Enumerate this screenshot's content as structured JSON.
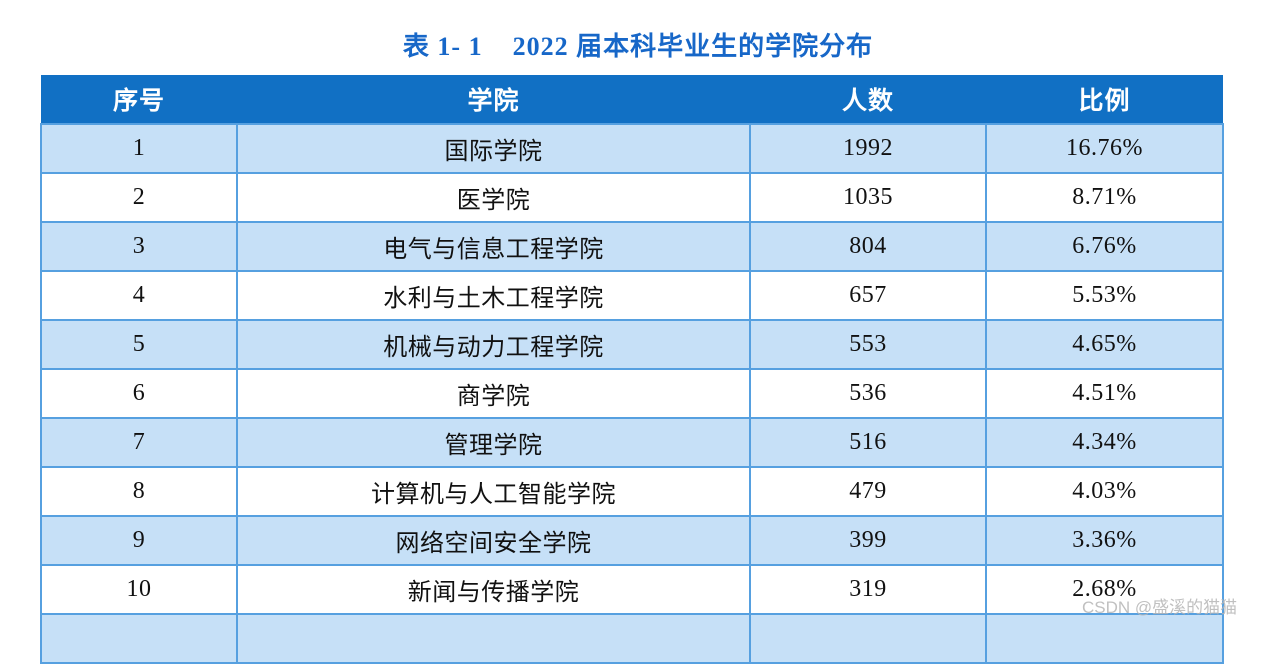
{
  "title": "表 1- 1    2022 届本科毕业生的学院分布",
  "table": {
    "columns": [
      "序号",
      "学院",
      "人数",
      "比例"
    ],
    "rows": [
      [
        "1",
        "国际学院",
        "1992",
        "16.76%"
      ],
      [
        "2",
        "医学院",
        "1035",
        "8.71%"
      ],
      [
        "3",
        "电气与信息工程学院",
        "804",
        "6.76%"
      ],
      [
        "4",
        "水利与土木工程学院",
        "657",
        "5.53%"
      ],
      [
        "5",
        "机械与动力工程学院",
        "553",
        "4.65%"
      ],
      [
        "6",
        "商学院",
        "536",
        "4.51%"
      ],
      [
        "7",
        "管理学院",
        "516",
        "4.34%"
      ],
      [
        "8",
        "计算机与人工智能学院",
        "479",
        "4.03%"
      ],
      [
        "9",
        "网络空间安全学院",
        "399",
        "3.36%"
      ],
      [
        "10",
        "新闻与传播学院",
        "319",
        "2.68%"
      ]
    ],
    "partial_row_visible": true
  },
  "watermark": "CSDN @盛溪的猫猫",
  "colors": {
    "header_bg": "#1170C4",
    "row_alt_bg": "#C6E0F7",
    "border_color": "#56A0E0",
    "title_color": "#1767C8",
    "watermark_color": "#B6B6B6"
  }
}
